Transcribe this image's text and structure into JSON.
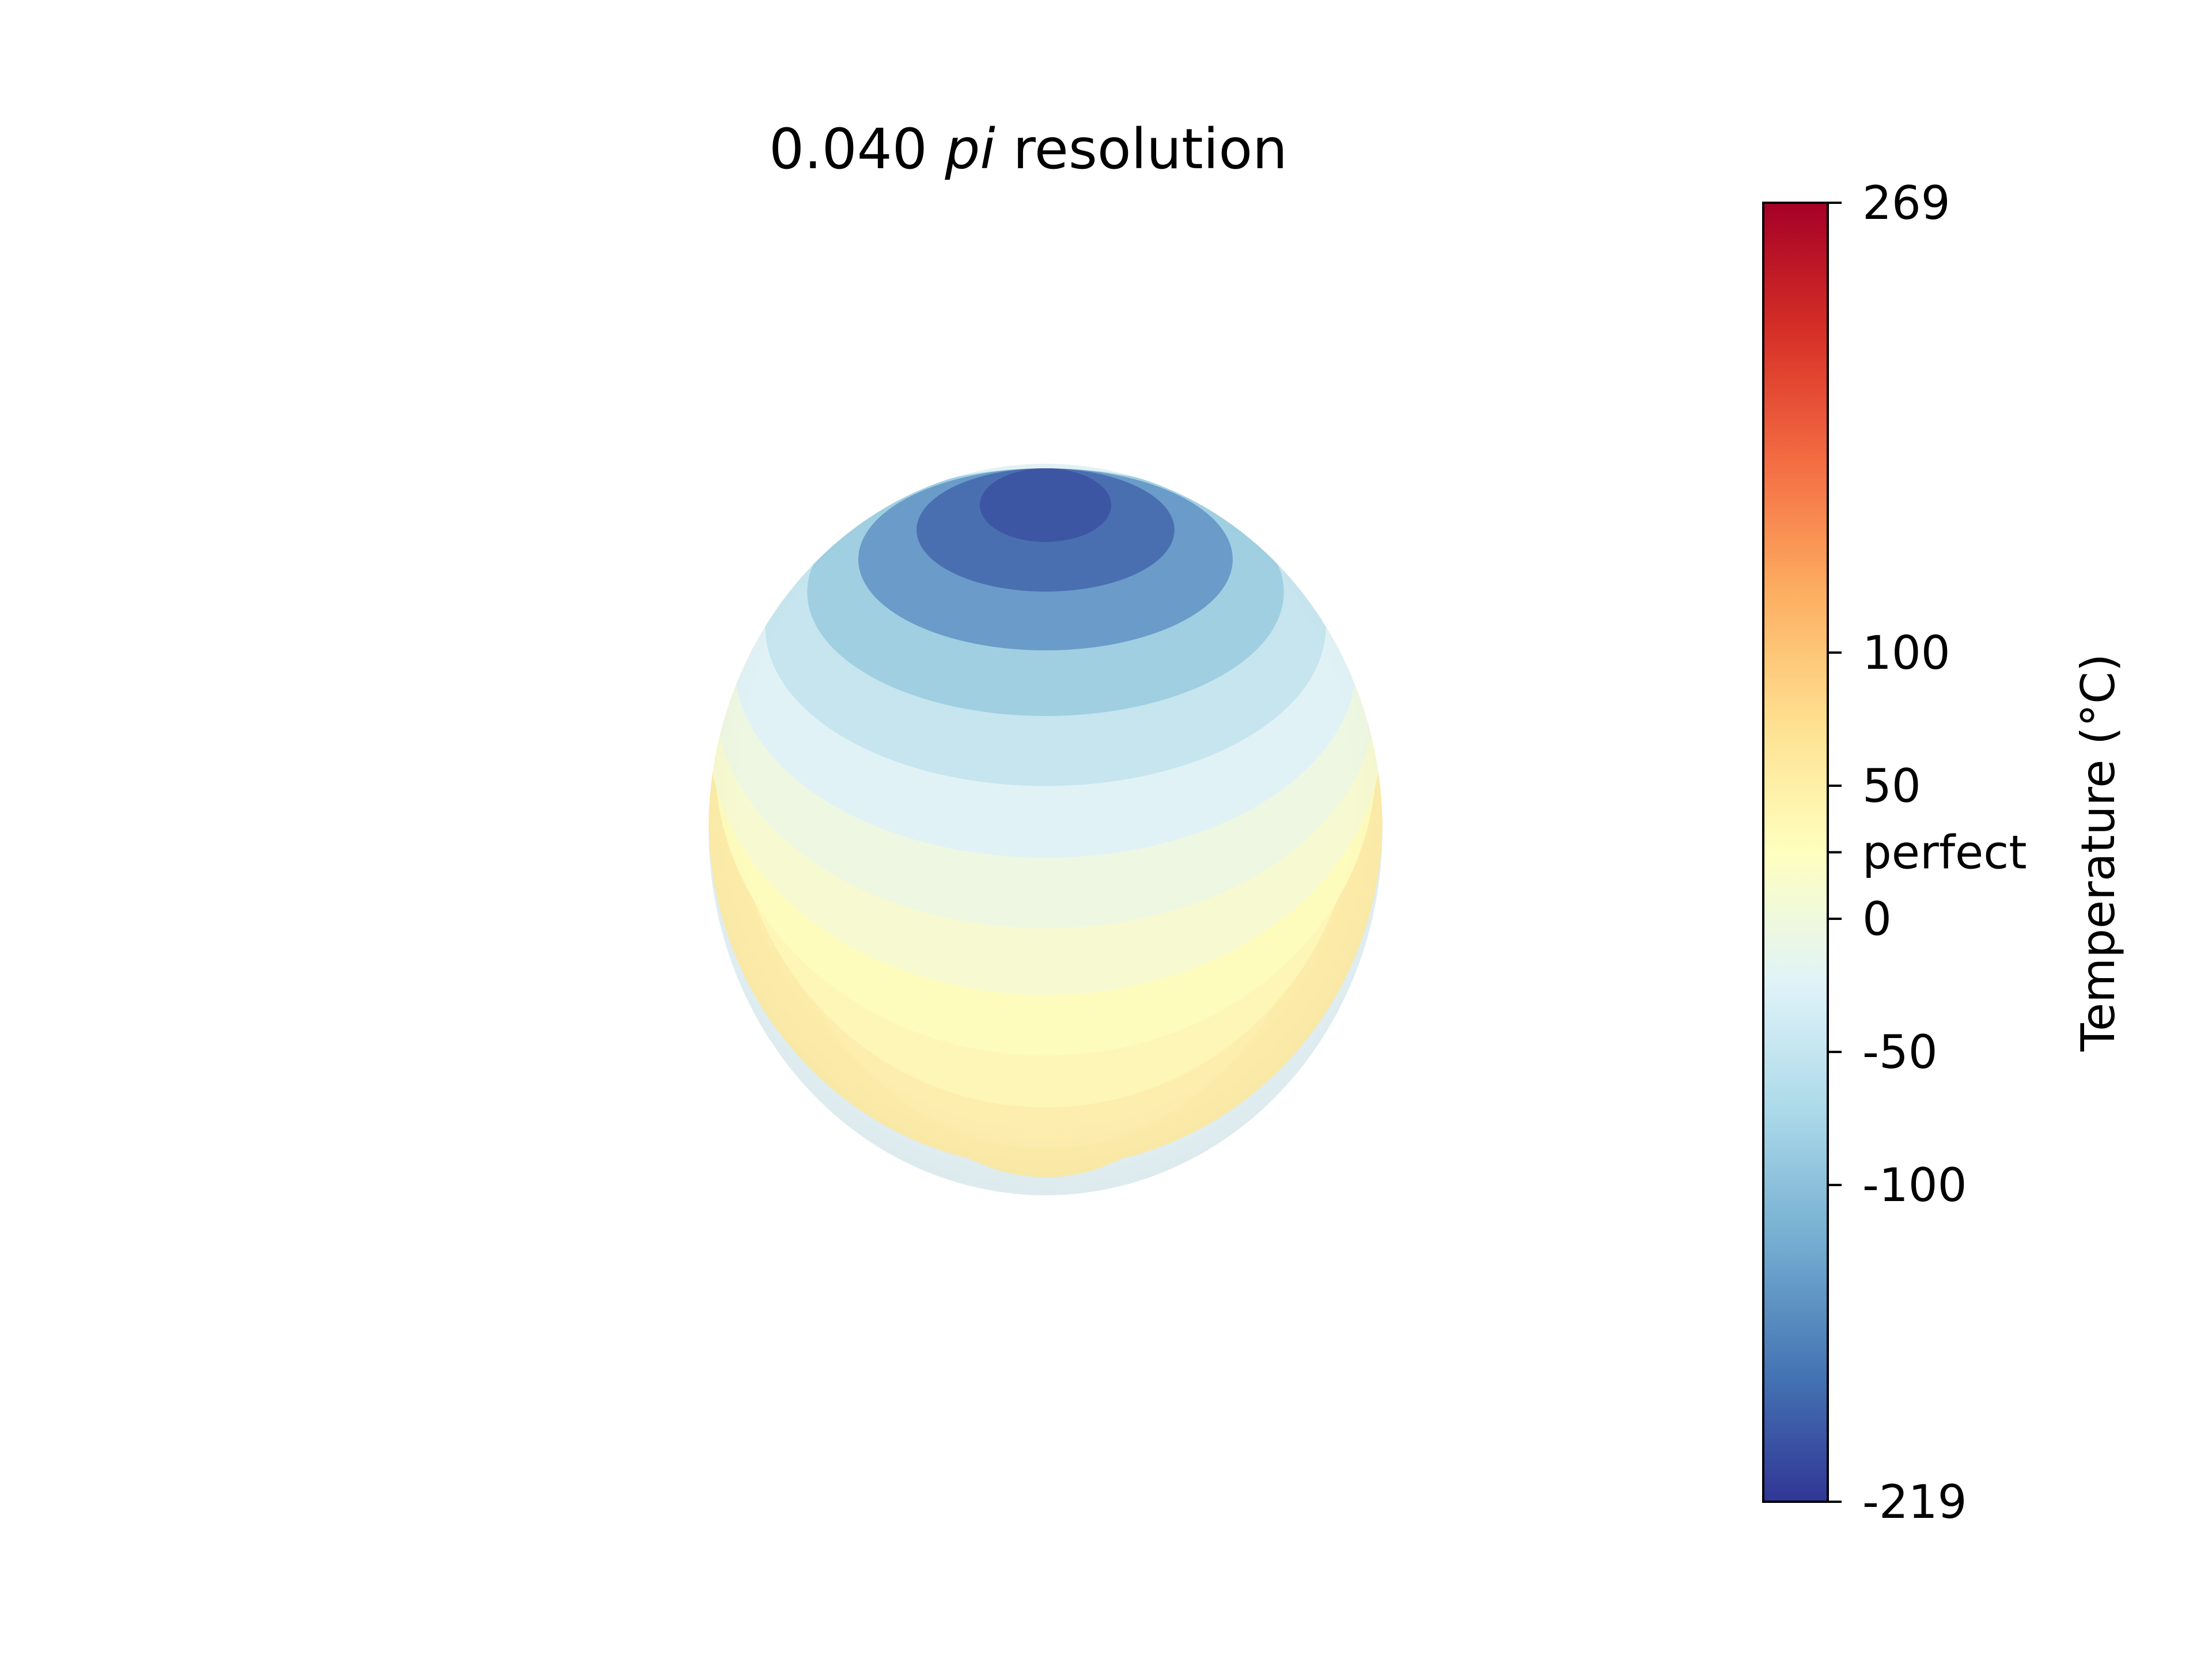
{
  "chart_data": {
    "type": "heatmap",
    "title": {
      "number": "0.040",
      "italic": "pi",
      "rest": "resolution"
    },
    "sphere_bands": [
      {
        "temperature": -219,
        "color": "#3d56a4"
      },
      {
        "temperature": -180,
        "color": "#4a6fb0"
      },
      {
        "temperature": -140,
        "color": "#6a9bc9"
      },
      {
        "temperature": -100,
        "color": "#9fcfe1"
      },
      {
        "temperature": -70,
        "color": "#c6e5ee"
      },
      {
        "temperature": -40,
        "color": "#e1f2f6"
      },
      {
        "temperature": -15,
        "color": "#eef7e2"
      },
      {
        "temperature": 10,
        "color": "#f7fad0"
      },
      {
        "temperature": 25,
        "color": "#fdfcbc"
      },
      {
        "temperature": 40,
        "color": "#fef6b6"
      },
      {
        "temperature": 55,
        "color": "#fdeeae"
      },
      {
        "temperature": 60,
        "color": "#fdeca9"
      }
    ],
    "colorbar": {
      "label": "Temperature (°C)",
      "range": [
        -219,
        269
      ],
      "colormap": "RdYlBu_r",
      "colors": [
        "#313695",
        "#4575b4",
        "#74add1",
        "#abd9e9",
        "#e0f3f8",
        "#ffffbf",
        "#fee090",
        "#fdae61",
        "#f46d43",
        "#d73027",
        "#a50026"
      ],
      "ticks": [
        {
          "value": 269,
          "label": "269"
        },
        {
          "value": 100,
          "label": "100"
        },
        {
          "value": 50,
          "label": "50"
        },
        {
          "value": 25,
          "label": "perfect"
        },
        {
          "value": 0,
          "label": "0"
        },
        {
          "value": -50,
          "label": "-50"
        },
        {
          "value": -100,
          "label": "-100"
        },
        {
          "value": -219,
          "label": "-219"
        }
      ]
    }
  }
}
